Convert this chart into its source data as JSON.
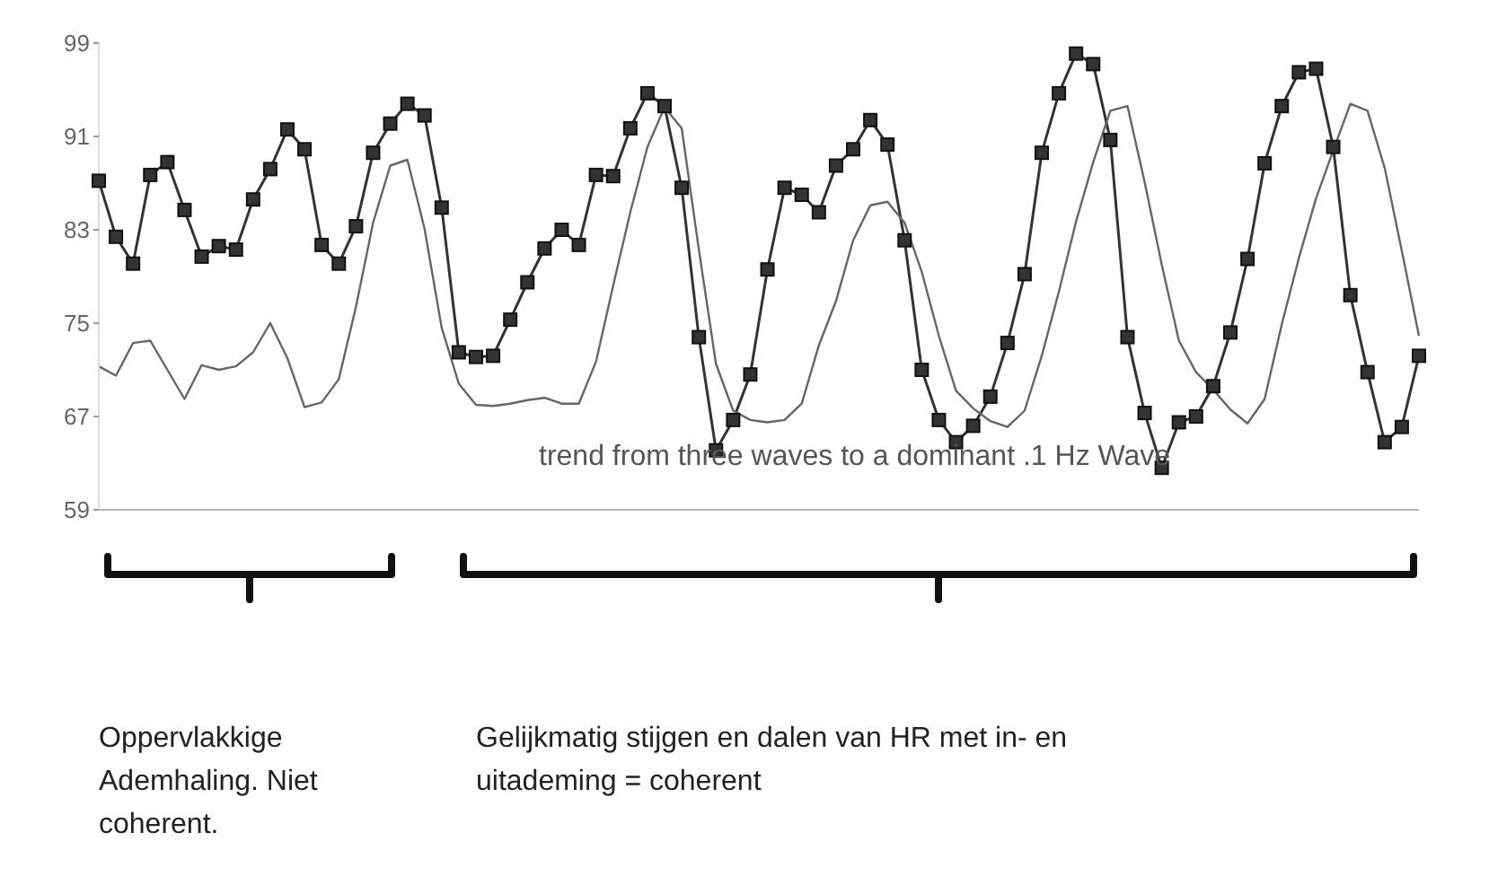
{
  "chart_data": {
    "type": "line",
    "categories": [
      null,
      null,
      null,
      null,
      null,
      null,
      null,
      null,
      null,
      null,
      null,
      null,
      null,
      null,
      null,
      null,
      null,
      null,
      null,
      null,
      null,
      null,
      null,
      null,
      null,
      null,
      null,
      null,
      null,
      null,
      null,
      null,
      null,
      null,
      null,
      null,
      null,
      null,
      null,
      null,
      null,
      null,
      null,
      null,
      null,
      null,
      null,
      null,
      null,
      null,
      null,
      null,
      null,
      null,
      null,
      null,
      null,
      null,
      null,
      null,
      null,
      null,
      null,
      null,
      null,
      null,
      null,
      null,
      null,
      null,
      null,
      null,
      null,
      null,
      null,
      null,
      null,
      null
    ],
    "ylim": [
      59,
      99
    ],
    "yticks": [
      59,
      67,
      75,
      83,
      91,
      99
    ],
    "line_style": "solid",
    "annotations": [
      "trend from three waves to a dominant .1 Hz Wave",
      "Oppervlakkige Ademhaling. Niet coherent.",
      "Gelijkmatig stijgen en dalen van HR met in- en uitademing = coherent"
    ],
    "series": [
      {
        "color": "#333333",
        "marker": "square",
        "values": [
          87.2,
          82.4,
          80.1,
          87.7,
          88.8,
          84.7,
          80.7,
          81.6,
          81.3,
          85.6,
          88.2,
          91.6,
          89.9,
          81.7,
          80.1,
          83.3,
          89.6,
          92.1,
          93.8,
          92.8,
          84.9,
          72.5,
          72.1,
          72.2,
          75.3,
          78.5,
          81.4,
          83.0,
          81.7,
          87.7,
          87.6,
          91.7,
          94.7,
          93.6,
          86.6,
          73.8,
          64.1,
          66.7,
          70.6,
          79.6,
          86.6,
          86.0,
          84.5,
          88.5,
          89.9,
          92.4,
          90.3,
          82.1,
          71.0,
          66.7,
          64.8,
          66.2,
          68.7,
          73.3,
          79.2,
          89.6,
          94.7,
          98.1,
          97.2,
          90.7,
          73.8,
          67.3,
          62.6,
          66.5,
          67.0,
          69.6,
          74.2,
          80.5,
          88.7,
          93.6,
          96.5,
          96.8,
          90.1,
          77.4,
          70.8,
          64.8,
          66.1,
          72.2
        ]
      },
      {
        "color": "#666666",
        "marker": "none",
        "values": [
          71.3,
          70.5,
          73.3,
          73.5,
          71.0,
          68.5,
          71.4,
          71.0,
          71.3,
          72.5,
          75.0,
          72.0,
          67.8,
          68.2,
          70.2,
          76.4,
          83.6,
          88.5,
          89.0,
          83.1,
          74.6,
          69.8,
          68.0,
          67.9,
          68.1,
          68.4,
          68.6,
          68.1,
          68.1,
          71.7,
          78.2,
          84.5,
          90.1,
          93.5,
          91.7,
          81.3,
          71.5,
          67.5,
          66.7,
          66.5,
          66.7,
          68.1,
          73.1,
          76.9,
          82.1,
          85.1,
          85.4,
          83.6,
          79.4,
          73.9,
          69.2,
          67.7,
          66.6,
          66.1,
          67.5,
          72.2,
          77.7,
          83.7,
          88.8,
          93.2,
          93.6,
          87.1,
          80.0,
          73.5,
          70.8,
          69.3,
          67.6,
          66.4,
          68.5,
          74.9,
          80.6,
          85.7,
          89.8,
          93.8,
          93.2,
          88.3,
          81.2,
          73.9
        ]
      }
    ]
  }
}
